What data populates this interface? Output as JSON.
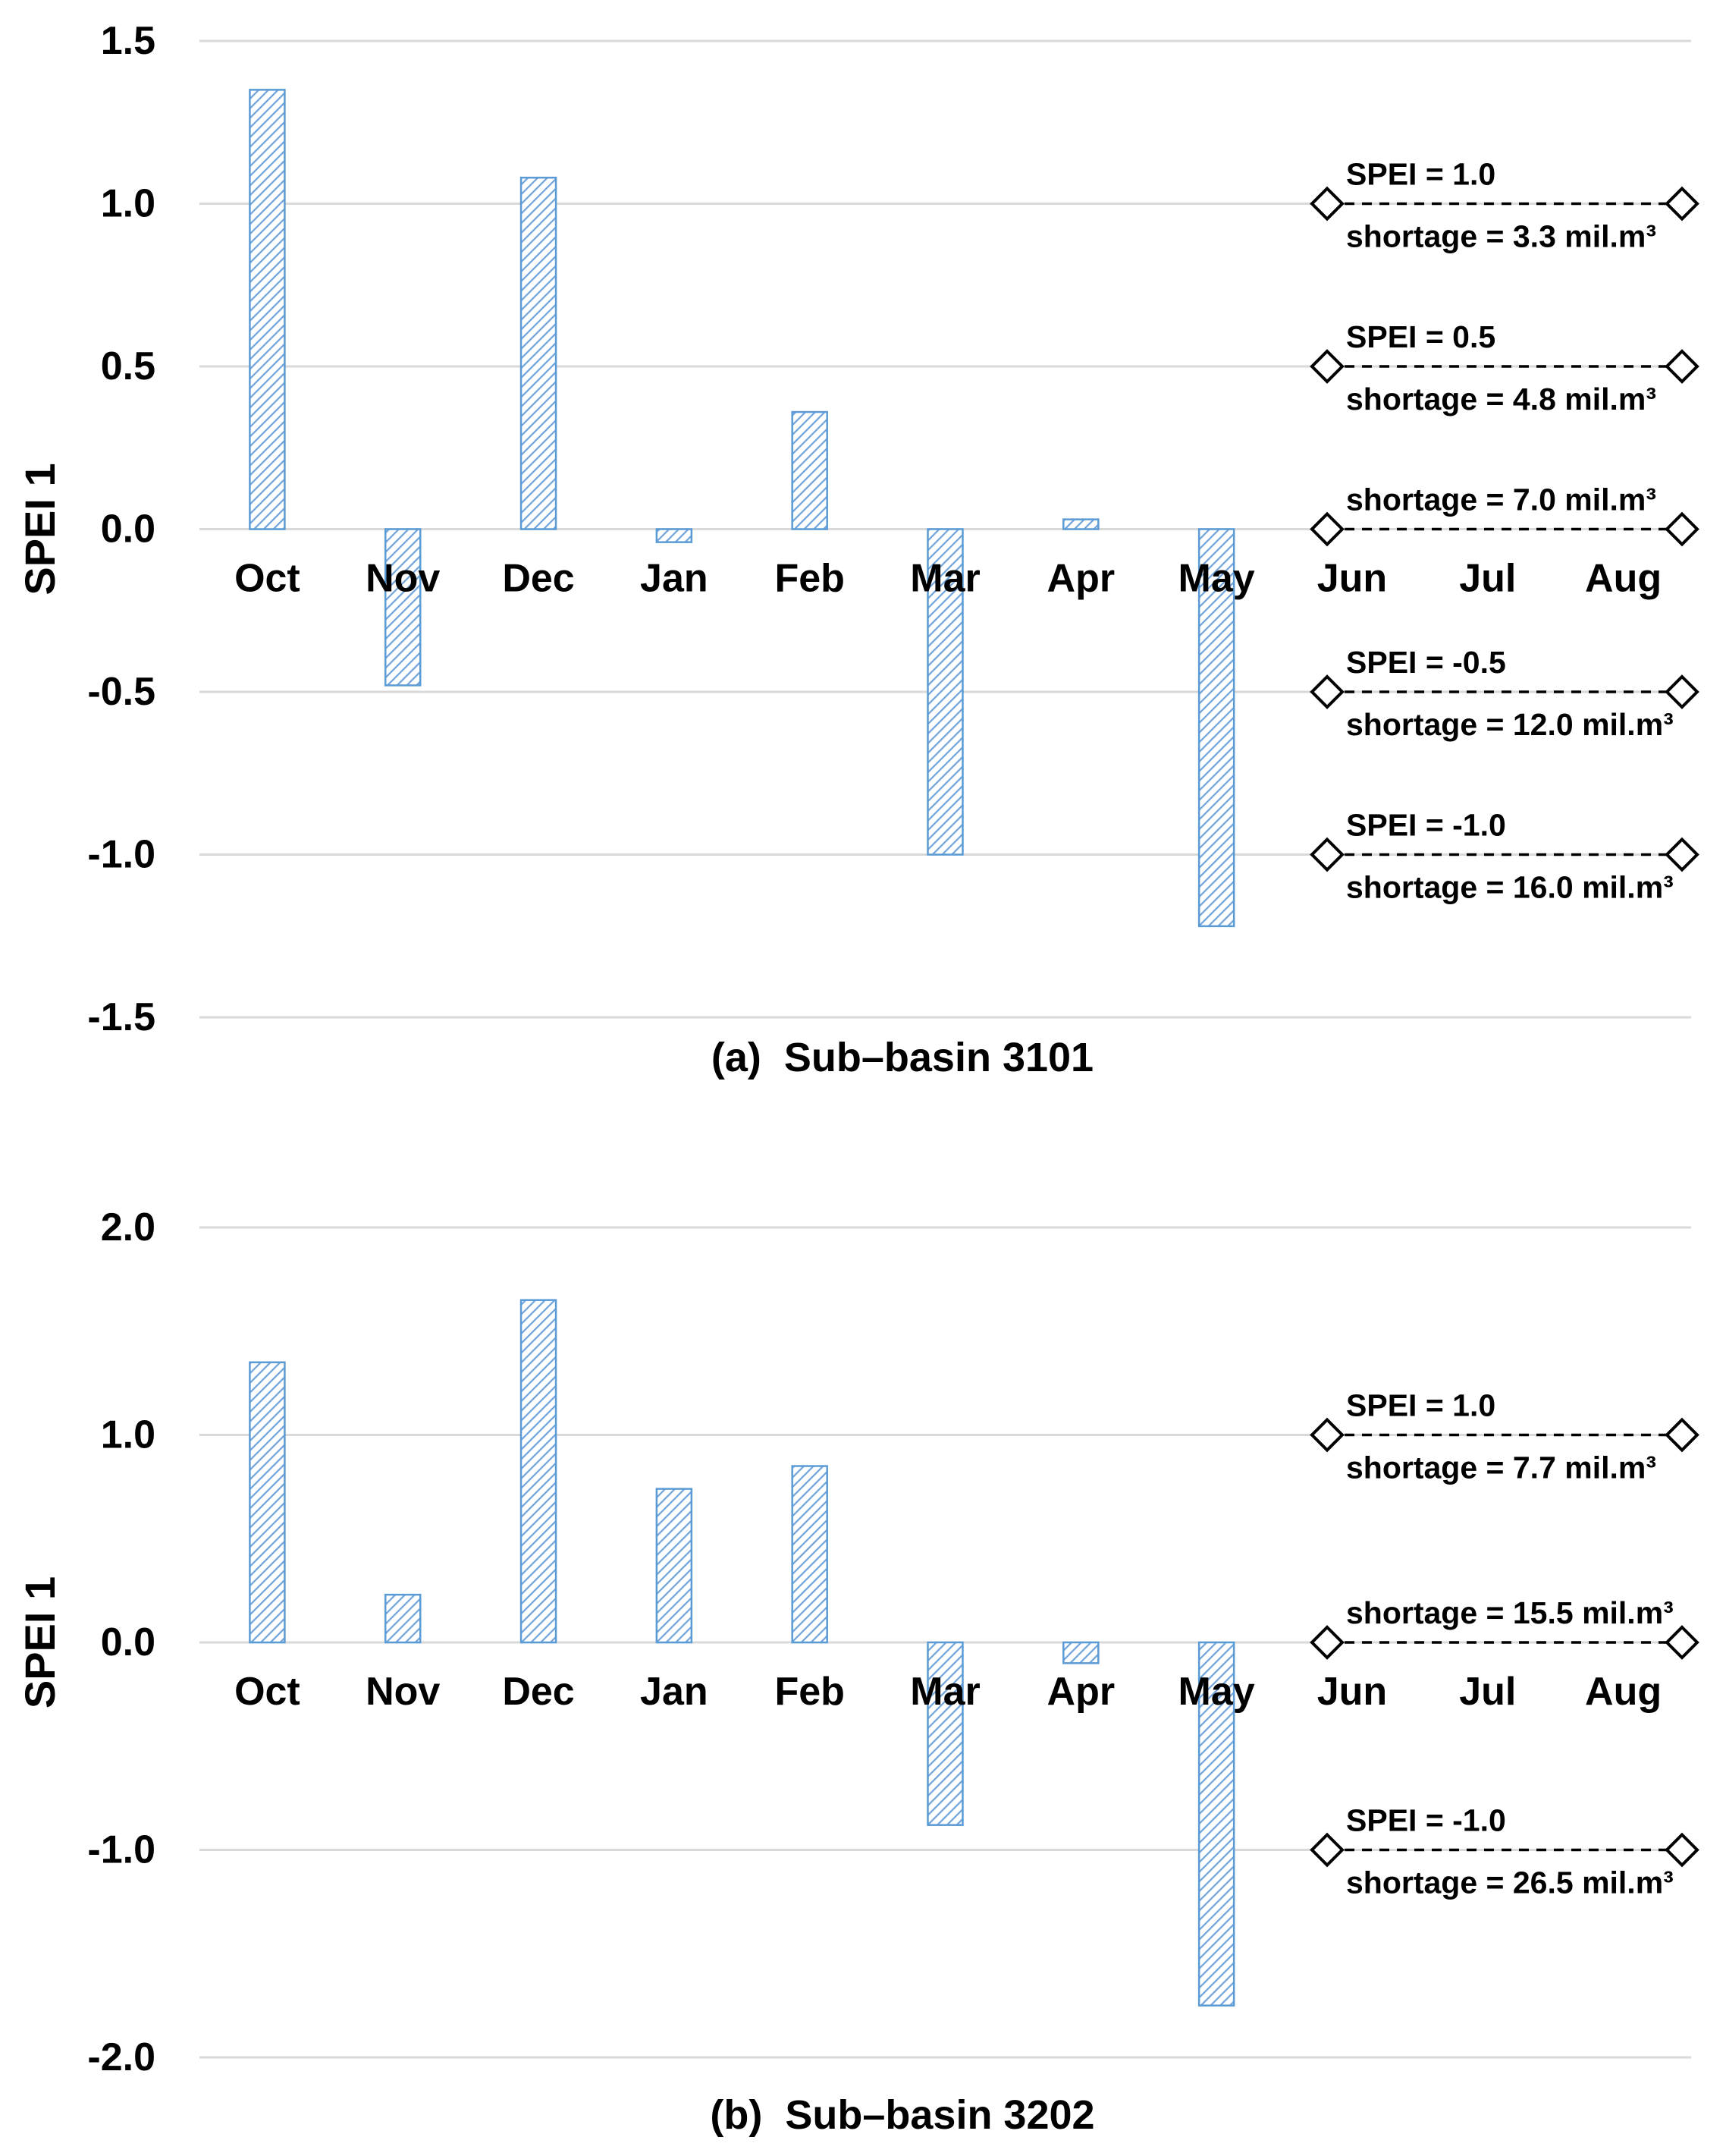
{
  "figure": {
    "background": "#FFFFFF",
    "accent_blue": "#5B9BD5",
    "hatch_blue": "#6FA3DB",
    "gridline_color": "#D9D9D9",
    "annotation_color": "#000000"
  },
  "chart_data": [
    {
      "type": "bar",
      "caption_prefix": "(a)",
      "caption_label": "Sub–basin 3101",
      "ylabel": "SPEI 1",
      "xlabel": "",
      "categories": [
        "Oct",
        "Nov",
        "Dec",
        "Jan",
        "Feb",
        "Mar",
        "Apr",
        "May",
        "Jun",
        "Jul",
        "Aug"
      ],
      "values": [
        1.35,
        -0.48,
        1.08,
        -0.04,
        0.36,
        -1.0,
        0.03,
        -1.22,
        null,
        null,
        null
      ],
      "ylim": [
        -1.5,
        1.5
      ],
      "y_ticks": [
        "1.5",
        "1.0",
        "0.5",
        "0.0",
        "-0.5",
        "-1.0",
        "-1.5"
      ],
      "grid": true,
      "legend": null,
      "annotations": [
        {
          "y": 1.0,
          "line1": "SPEI = 1.0",
          "line2": "shortage = 3.3 mil.m³"
        },
        {
          "y": 0.5,
          "line1": "SPEI = 0.5",
          "line2": "shortage = 4.8 mil.m³"
        },
        {
          "y": 0.0,
          "line1": "shortage = 7.0 mil.m³",
          "line2": null
        },
        {
          "y": -0.5,
          "line1": "SPEI = -0.5",
          "line2": "shortage = 12.0 mil.m³"
        },
        {
          "y": -1.0,
          "line1": "SPEI = -1.0",
          "line2": "shortage = 16.0 mil.m³"
        }
      ]
    },
    {
      "type": "bar",
      "caption_prefix": "(b)",
      "caption_label": "Sub–basin 3202",
      "ylabel": "SPEI 1",
      "xlabel": "",
      "categories": [
        "Oct",
        "Nov",
        "Dec",
        "Jan",
        "Feb",
        "Mar",
        "Apr",
        "May",
        "Jun",
        "Jul",
        "Aug"
      ],
      "values": [
        1.35,
        0.23,
        1.65,
        0.74,
        0.85,
        -0.88,
        -0.1,
        -1.75,
        null,
        null,
        null
      ],
      "ylim": [
        -2.0,
        2.0
      ],
      "y_ticks": [
        "2.0",
        "1.0",
        "0.0",
        "-1.0",
        "-2.0"
      ],
      "grid": true,
      "legend": null,
      "annotations": [
        {
          "y": 1.0,
          "line1": "SPEI = 1.0",
          "line2": "shortage = 7.7 mil.m³"
        },
        {
          "y": 0.0,
          "line1": "shortage = 15.5 mil.m³",
          "line2": null
        },
        {
          "y": -1.0,
          "line1": "SPEI = -1.0",
          "line2": "shortage = 26.5 mil.m³"
        }
      ]
    }
  ]
}
